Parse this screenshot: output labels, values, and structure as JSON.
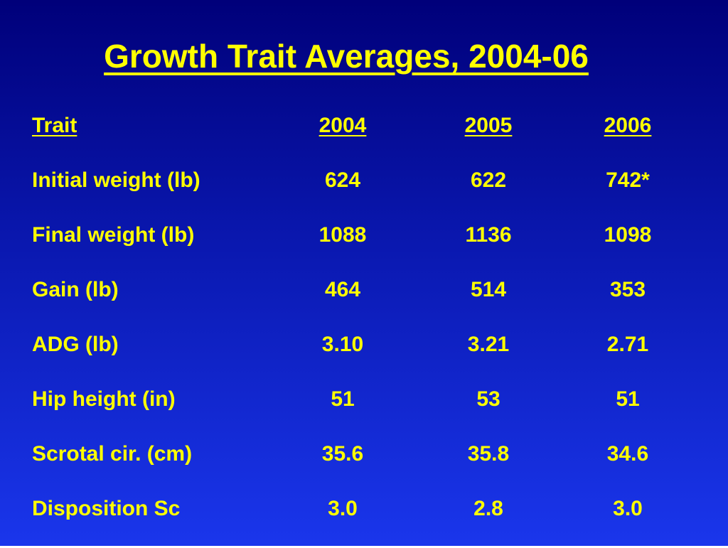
{
  "slide": {
    "title": "Growth Trait Averages, 2004-06"
  },
  "table": {
    "headers": [
      "Trait",
      "2004",
      "2005",
      "2006"
    ],
    "rows": [
      [
        "Initial weight (lb)",
        "624",
        "622",
        "742*"
      ],
      [
        "Final weight (lb)",
        "1088",
        "1136",
        "1098"
      ],
      [
        "Gain (lb)",
        "464",
        "514",
        "353"
      ],
      [
        "ADG (lb)",
        "3.10",
        "3.21",
        "2.71"
      ],
      [
        "Hip height (in)",
        "51",
        "53",
        "51"
      ],
      [
        "Scrotal cir. (cm)",
        "35.6",
        "35.8",
        "34.6"
      ],
      [
        "Disposition Sc",
        "3.0",
        "2.8",
        "3.0"
      ]
    ]
  },
  "colors": {
    "background_top": "#00007a",
    "background_bottom": "#1a36ec",
    "text": "#ffff00"
  }
}
